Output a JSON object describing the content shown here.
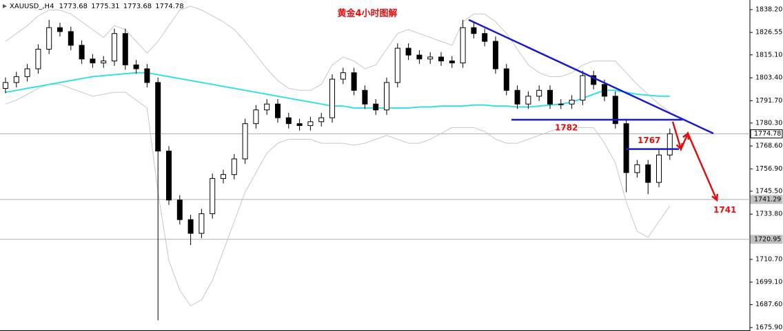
{
  "chart_data": {
    "type": "candlestick",
    "symbol": "XAUUSD_,H4",
    "header_ohlc": [
      1773.68,
      1775.31,
      1773.68,
      1774.78
    ],
    "title": "黄金4小时图解",
    "ylim": [
      1675.9,
      1838.2
    ],
    "yticks": [
      {
        "value": 1838.2,
        "label": "1838.20"
      },
      1826.55,
      {
        "value": 1815.1,
        "label": "1815.10"
      },
      {
        "value": 1803.4,
        "label": "1803.40"
      },
      {
        "value": 1791.7,
        "label": "1791.70"
      },
      {
        "value": 1780.3,
        "label": "1780.30"
      },
      {
        "value": 1768.6,
        "label": "1768.60"
      },
      {
        "value": 1756.9,
        "label": "1756.90"
      },
      {
        "value": 1745.5,
        "label": "1745.50"
      },
      {
        "value": 1733.8,
        "label": "1733.80"
      },
      {
        "value": 1710.7,
        "label": "1710.70"
      },
      {
        "value": 1699.1,
        "label": "1699.10"
      },
      {
        "value": 1687.6,
        "label": "1687.60"
      },
      {
        "value": 1675.9,
        "label": "1675.90"
      }
    ],
    "candles": [
      [
        1798,
        1803.5,
        1795.5,
        1801
      ],
      [
        1801,
        1806.5,
        1798.5,
        1804
      ],
      [
        1804,
        1810.5,
        1801.5,
        1808
      ],
      [
        1808,
        1820.5,
        1805.5,
        1818
      ],
      [
        1818,
        1833,
        1815.5,
        1829
      ],
      [
        1829,
        1831.5,
        1824.5,
        1827
      ],
      [
        1827,
        1829.5,
        1817.5,
        1820
      ],
      [
        1820,
        1822.5,
        1810.5,
        1813
      ],
      [
        1813,
        1815.5,
        1808.5,
        1811
      ],
      [
        1811,
        1814.5,
        1808.5,
        1812
      ],
      [
        1812,
        1828.5,
        1809.5,
        1826
      ],
      [
        1826,
        1828.5,
        1807.5,
        1810
      ],
      [
        1810,
        1812.5,
        1805.5,
        1808
      ],
      [
        1808,
        1810.5,
        1798.5,
        1801
      ],
      [
        1801,
        1803.5,
        1679.6,
        1766
      ],
      [
        1766,
        1768.5,
        1738.5,
        1741
      ],
      [
        1741,
        1743.5,
        1728.5,
        1731
      ],
      [
        1731,
        1733.5,
        1718,
        1724
      ],
      [
        1724,
        1736.5,
        1721.5,
        1734
      ],
      [
        1734,
        1754.5,
        1731.5,
        1752
      ],
      [
        1752,
        1756.5,
        1749.5,
        1754
      ],
      [
        1754,
        1764.5,
        1751.5,
        1762
      ],
      [
        1762,
        1782.5,
        1759.5,
        1780
      ],
      [
        1780,
        1789.5,
        1777.5,
        1787
      ],
      [
        1787,
        1792.5,
        1784.5,
        1790
      ],
      [
        1790,
        1792.5,
        1780.5,
        1783
      ],
      [
        1783,
        1785.5,
        1777.5,
        1780
      ],
      [
        1780,
        1782.5,
        1776.5,
        1779
      ],
      [
        1779,
        1783.5,
        1776.5,
        1781
      ],
      [
        1781,
        1785.5,
        1778.5,
        1783
      ],
      [
        1783,
        1805.2,
        1780.5,
        1802.7
      ],
      [
        1802.7,
        1808.5,
        1800.2,
        1806
      ],
      [
        1806,
        1808.5,
        1794.5,
        1797
      ],
      [
        1797,
        1799.5,
        1787.5,
        1790
      ],
      [
        1790,
        1792.5,
        1784.5,
        1787
      ],
      [
        1787,
        1803.5,
        1784.5,
        1801
      ],
      [
        1801,
        1821,
        1798.5,
        1818.5
      ],
      [
        1818.5,
        1821,
        1812.5,
        1815
      ],
      [
        1815,
        1817.5,
        1810.5,
        1813
      ],
      [
        1813,
        1816.5,
        1810.5,
        1814
      ],
      [
        1814,
        1816.5,
        1809.5,
        1812
      ],
      [
        1812,
        1814.5,
        1808.5,
        1811
      ],
      [
        1811,
        1833,
        1808.5,
        1829
      ],
      [
        1829,
        1831.5,
        1823.5,
        1826
      ],
      [
        1826,
        1828.5,
        1819.5,
        1822
      ],
      [
        1822,
        1824.5,
        1805.5,
        1808
      ],
      [
        1808,
        1810.5,
        1794.5,
        1797
      ],
      [
        1797,
        1799.5,
        1787.5,
        1790
      ],
      [
        1790,
        1796.5,
        1787.5,
        1794
      ],
      [
        1794,
        1799.5,
        1791.5,
        1797
      ],
      [
        1797,
        1799.5,
        1787.5,
        1790
      ],
      [
        1790,
        1792.5,
        1787.5,
        1790
      ],
      [
        1790,
        1794.5,
        1787.5,
        1792
      ],
      [
        1792,
        1807,
        1789.5,
        1804.5
      ],
      [
        1804.5,
        1807,
        1797.5,
        1800
      ],
      [
        1800,
        1802.5,
        1791.5,
        1794
      ],
      [
        1794,
        1796.5,
        1777.5,
        1780
      ],
      [
        1780,
        1782.5,
        1745,
        1755
      ],
      [
        1755,
        1761.5,
        1752.5,
        1759
      ],
      [
        1759,
        1761.5,
        1744,
        1750
      ],
      [
        1750,
        1766.5,
        1747.5,
        1764
      ],
      [
        1764,
        1777.5,
        1761.5,
        1774.78
      ]
    ],
    "series": [
      {
        "color": "#33e0e8",
        "values": [
          1796,
          1797,
          1798,
          1799,
          1800,
          1801,
          1802,
          1803,
          1804,
          1804.5,
          1805,
          1805.5,
          1806,
          1806,
          1805,
          1804,
          1803,
          1802,
          1801,
          1800,
          1799,
          1798,
          1797,
          1796,
          1795,
          1794,
          1793,
          1792,
          1791,
          1790,
          1789,
          1789,
          1788,
          1788,
          1788,
          1788,
          1788,
          1788,
          1788.5,
          1788.5,
          1789,
          1789,
          1789,
          1789.5,
          1789.5,
          1789,
          1789,
          1788.5,
          1788.5,
          1789,
          1789.5,
          1790,
          1791,
          1793,
          1795,
          1797,
          1797,
          1796,
          1795,
          1794.5,
          1794,
          1794
        ]
      },
      {
        "color": "#c8c8c8",
        "values": [
          1822,
          1826,
          1830,
          1835,
          1838,
          1838,
          1836,
          1832,
          1828,
          1824,
          1830,
          1828,
          1822,
          1816,
          1822,
          1830,
          1838,
          1840,
          1838,
          1835,
          1832,
          1828,
          1822,
          1815,
          1808,
          1802,
          1798,
          1797,
          1797,
          1800,
          1810,
          1814,
          1812,
          1808,
          1810,
          1818,
          1826,
          1828,
          1826,
          1824,
          1822,
          1820,
          1832,
          1836,
          1836,
          1832,
          1826,
          1818,
          1810,
          1806,
          1804,
          1804,
          1806,
          1810,
          1812,
          1812,
          1812,
          1806,
          1800,
          1795,
          1790,
          1786
        ]
      },
      {
        "color": "#c8c8c8",
        "values": [
          1790,
          1792,
          1795,
          1798,
          1800,
          1800,
          1798,
          1796,
          1794,
          1795,
          1796,
          1796,
          1792,
          1788,
          1745,
          1710,
          1695,
          1687,
          1690,
          1700,
          1715,
          1730,
          1745,
          1755,
          1765,
          1770,
          1772,
          1772,
          1772,
          1770,
          1770,
          1770,
          1769,
          1770,
          1772,
          1774,
          1772,
          1770,
          1770,
          1772,
          1775,
          1778,
          1778,
          1778,
          1776,
          1772,
          1770,
          1770,
          1772,
          1774,
          1776,
          1778,
          1778,
          1778,
          1778,
          1770,
          1760,
          1740,
          1725,
          1722,
          1730,
          1738
        ]
      }
    ],
    "price_lines": [
      1774.78,
      1741.29,
      1720.95
    ],
    "trend_line": [
      1833,
      1775
    ],
    "levels": [
      1782,
      1767
    ],
    "forecast": [
      1781,
      1767,
      1775,
      1741
    ]
  }
}
